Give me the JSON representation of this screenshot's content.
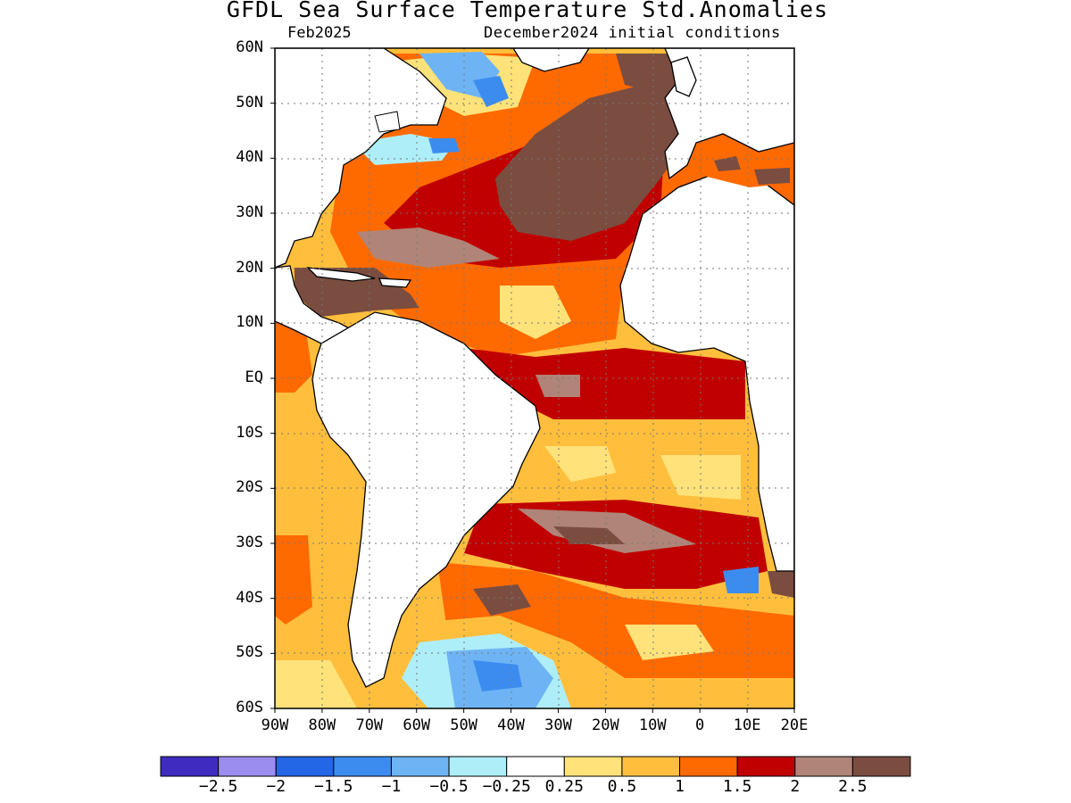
{
  "title": "GFDL Sea Surface Temperature Std.Anomalies",
  "valid_month": "Feb2025",
  "init_conditions": "December2024 initial conditions",
  "lat_labels": [
    "60N",
    "50N",
    "40N",
    "30N",
    "20N",
    "10N",
    "EQ",
    "10S",
    "20S",
    "30S",
    "40S",
    "50S",
    "60S"
  ],
  "lon_labels": [
    "90W",
    "80W",
    "70W",
    "60W",
    "50W",
    "40W",
    "30W",
    "20W",
    "10W",
    "0",
    "10E",
    "20E"
  ],
  "colorbar": {
    "colors": [
      "#3f2bbf",
      "#9b8cf0",
      "#2366e6",
      "#3c8cf0",
      "#6eb4f5",
      "#aeeef8",
      "#ffffff",
      "#ffe27a",
      "#ffbf3c",
      "#ff6a00",
      "#c00000",
      "#b08478",
      "#7a4d40"
    ],
    "labels": [
      "−2.5",
      "−2",
      "−1.5",
      "−1",
      "−0.5",
      "−0.25",
      "0.25",
      "0.5",
      "1",
      "1.5",
      "2",
      "2.5"
    ]
  },
  "map": {
    "extent": {
      "lon": [
        -90,
        20
      ],
      "lat": [
        -60,
        60
      ]
    },
    "land_color": "#ffffff",
    "coast_color": "#000000",
    "grid": "dotted"
  }
}
